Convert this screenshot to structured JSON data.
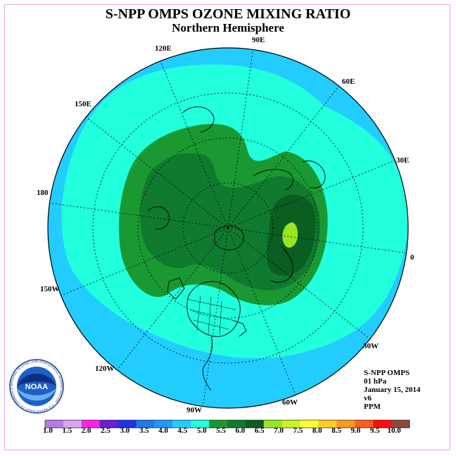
{
  "title": "S-NPP OMPS OZONE MIXING RATIO",
  "subtitle": "Northern Hemisphere",
  "longitude_labels": [
    "90E",
    "60E",
    "30E",
    "0",
    "30W",
    "60W",
    "90W",
    "120W",
    "150W",
    "180",
    "150E",
    "120E"
  ],
  "info": {
    "instrument": "S-NPP OMPS",
    "level": "01 hPa",
    "date": "January 15, 2014",
    "version": "v6",
    "units": "PPM"
  },
  "logo": {
    "name": "NOAA",
    "ring_text": "NATIONAL OCEANIC AND ATMOSPHERIC ADMINISTRATION · U.S. DEPARTMENT OF COMMERCE"
  },
  "colorbar": {
    "labels": [
      "1.0",
      "1.5",
      "2.0",
      "2.5",
      "3.0",
      "3.5",
      "4.0",
      "4.5",
      "5.0",
      "5.5",
      "6.0",
      "6.5",
      "7.0",
      "7.5",
      "8.0",
      "8.5",
      "9.0",
      "9.5",
      "10.0"
    ],
    "colors": [
      "#b57be6",
      "#d9a6f2",
      "#ff22e6",
      "#6a1fd1",
      "#1f33e6",
      "#1f7be6",
      "#1f99ff",
      "#22ccff",
      "#22ffdd",
      "#1a9933",
      "#0f7a2e",
      "#0a5e22",
      "#99e61f",
      "#ccf21f",
      "#ffff33",
      "#ffcc1f",
      "#ff9920",
      "#ff5d1f",
      "#ff0d0d",
      "#8a4a38"
    ]
  },
  "map_colors": {
    "ocean_outer": "#22ccff",
    "band_45": "#22ffdd",
    "band_50": "#1a9933",
    "band_55": "#0f7a2e",
    "band_60": "#0a5e22",
    "band_65": "#99e61f"
  }
}
